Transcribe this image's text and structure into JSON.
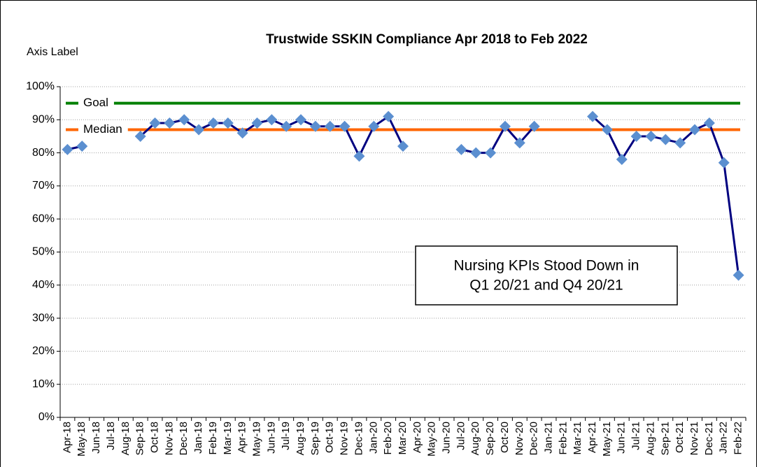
{
  "chart_data": {
    "type": "line",
    "title": "Trustwide SSKIN Compliance Apr 2018 to Feb 2022",
    "y_label": "Axis Label",
    "categories": [
      "Apr-18",
      "May-18",
      "Jun-18",
      "Jul-18",
      "Aug-18",
      "Sep-18",
      "Oct-18",
      "Nov-18",
      "Dec-18",
      "Jan-19",
      "Feb-19",
      "Mar-19",
      "Apr-19",
      "May-19",
      "Jun-19",
      "Jul-19",
      "Aug-19",
      "Sep-19",
      "Oct-19",
      "Nov-19",
      "Dec-19",
      "Jan-20",
      "Feb-20",
      "Mar-20",
      "Apr-20",
      "May-20",
      "Jun-20",
      "Jul-20",
      "Aug-20",
      "Sep-20",
      "Oct-20",
      "Nov-20",
      "Dec-20",
      "Jan-21",
      "Feb-21",
      "Mar-21",
      "Apr-21",
      "May-21",
      "Jun-21",
      "Jul-21",
      "Aug-21",
      "Sep-21",
      "Oct-21",
      "Nov-21",
      "Dec-21",
      "Jan-22",
      "Feb-22"
    ],
    "series": [
      {
        "name": "Compliance",
        "color": "#000080",
        "marker_color": "#5b8fd0",
        "values": [
          81,
          82,
          null,
          null,
          null,
          85,
          89,
          89,
          90,
          87,
          89,
          89,
          86,
          89,
          90,
          88,
          90,
          88,
          88,
          88,
          79,
          88,
          91,
          82,
          null,
          null,
          null,
          81,
          80,
          80,
          88,
          83,
          88,
          null,
          null,
          null,
          91,
          87,
          78,
          85,
          85,
          84,
          83,
          87,
          89,
          77,
          43
        ]
      }
    ],
    "reference_lines": [
      {
        "name": "Goal",
        "value": 95,
        "color": "#008000",
        "label_color": "#008000"
      },
      {
        "name": "Median",
        "value": 87,
        "color": "#ff6600",
        "label_color": "#ff0000"
      }
    ],
    "annotation": [
      "Nursing KPIs Stood Down in",
      "Q1 20/21 and Q4 20/21"
    ],
    "ylim": [
      0,
      100
    ],
    "yticks": [
      {
        "value": 0,
        "label": "0%"
      },
      {
        "value": 10,
        "label": "10%"
      },
      {
        "value": 20,
        "label": "20%"
      },
      {
        "value": 30,
        "label": "30%"
      },
      {
        "value": 40,
        "label": "40%"
      },
      {
        "value": 50,
        "label": "50%"
      },
      {
        "value": 60,
        "label": "60%"
      },
      {
        "value": 70,
        "label": "70%"
      },
      {
        "value": 80,
        "label": "80%"
      },
      {
        "value": 90,
        "label": "90%"
      },
      {
        "value": 100,
        "label": "100%"
      }
    ],
    "grid": true
  }
}
